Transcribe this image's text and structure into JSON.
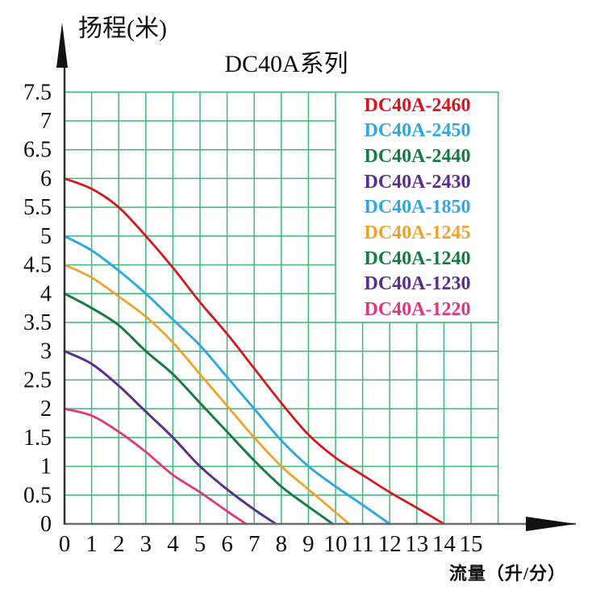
{
  "title": "DC40A系列",
  "y_axis_title": "扬程(米)",
  "x_axis_title": "流量（升/分）",
  "colors": {
    "grid": "#3CB878",
    "x_axis": "#6b6b6b",
    "y_axis": "#333333",
    "arrow": "#111111",
    "legend_background": "#ffffff",
    "text": "#111111"
  },
  "y_ticks": [
    "7.5",
    "7",
    "6.5",
    "6",
    "5.5",
    "5",
    "4.5",
    "4",
    "3.5",
    "3",
    "2.5",
    "2",
    "1.5",
    "1",
    "0.5",
    "0"
  ],
  "x_ticks": [
    "0",
    "1",
    "2",
    "3",
    "4",
    "5",
    "6",
    "7",
    "8",
    "9",
    "10",
    "11",
    "12",
    "13",
    "14",
    "15"
  ],
  "chart_data": {
    "type": "line",
    "title": "DC40A系列",
    "xlabel": "流量（升/分）",
    "ylabel": "扬程(米)",
    "xlim": [
      0,
      16
    ],
    "ylim": [
      0,
      7.5
    ],
    "x_grid_step": 1,
    "y_grid_step": 0.5,
    "grid": true,
    "legend_position": "top-right",
    "series": [
      {
        "name": "DC40A-2460",
        "color": "#D6161D",
        "points": [
          [
            0,
            6
          ],
          [
            1,
            5.82
          ],
          [
            2,
            5.5
          ],
          [
            3,
            5.0
          ],
          [
            4,
            4.45
          ],
          [
            5,
            3.85
          ],
          [
            6,
            3.3
          ],
          [
            7,
            2.7
          ],
          [
            8,
            2.1
          ],
          [
            9,
            1.55
          ],
          [
            10,
            1.15
          ],
          [
            11,
            0.85
          ],
          [
            12,
            0.55
          ],
          [
            13,
            0.28
          ],
          [
            14,
            0
          ]
        ]
      },
      {
        "name": "DC40A-2450",
        "color": "#2FA8E1",
        "points": [
          [
            0,
            5
          ],
          [
            1,
            4.75
          ],
          [
            2,
            4.4
          ],
          [
            3,
            4.0
          ],
          [
            4,
            3.55
          ],
          [
            5,
            3.1
          ],
          [
            6,
            2.55
          ],
          [
            7,
            2.0
          ],
          [
            8,
            1.45
          ],
          [
            9,
            1.0
          ],
          [
            10,
            0.65
          ],
          [
            11,
            0.33
          ],
          [
            12,
            0
          ]
        ]
      },
      {
        "name": "DC40A-2440",
        "color": "#177B44",
        "points": [
          [
            0,
            4
          ],
          [
            1,
            3.75
          ],
          [
            2,
            3.45
          ],
          [
            3,
            3.0
          ],
          [
            4,
            2.6
          ],
          [
            5,
            2.1
          ],
          [
            6,
            1.6
          ],
          [
            7,
            1.1
          ],
          [
            8,
            0.65
          ],
          [
            9,
            0.3
          ],
          [
            9.9,
            0
          ]
        ]
      },
      {
        "name": "DC40A-2430",
        "color": "#5B2D90",
        "points": [
          [
            0,
            3
          ],
          [
            1,
            2.78
          ],
          [
            2,
            2.4
          ],
          [
            3,
            1.95
          ],
          [
            4,
            1.5
          ],
          [
            5,
            1.0
          ],
          [
            6,
            0.6
          ],
          [
            7,
            0.25
          ],
          [
            7.8,
            0
          ]
        ]
      },
      {
        "name": "DC40A-1850",
        "color": "#2FA8E1",
        "points": [
          [
            0,
            5
          ],
          [
            1,
            4.75
          ],
          [
            2,
            4.4
          ],
          [
            3,
            4.0
          ],
          [
            4,
            3.55
          ],
          [
            5,
            3.1
          ],
          [
            6,
            2.55
          ],
          [
            7,
            2.0
          ],
          [
            8,
            1.45
          ],
          [
            9,
            1.0
          ],
          [
            10,
            0.65
          ],
          [
            11,
            0.33
          ],
          [
            12,
            0
          ]
        ]
      },
      {
        "name": "DC40A-1245",
        "color": "#EFA32B",
        "points": [
          [
            0,
            4.5
          ],
          [
            1,
            4.28
          ],
          [
            2,
            3.95
          ],
          [
            3,
            3.6
          ],
          [
            4,
            3.15
          ],
          [
            5,
            2.6
          ],
          [
            6,
            2.05
          ],
          [
            7,
            1.5
          ],
          [
            8,
            1.0
          ],
          [
            9,
            0.6
          ],
          [
            10,
            0.2
          ],
          [
            10.5,
            0
          ]
        ]
      },
      {
        "name": "DC40A-1240",
        "color": "#177B44",
        "points": [
          [
            0,
            4
          ],
          [
            1,
            3.75
          ],
          [
            2,
            3.45
          ],
          [
            3,
            3.0
          ],
          [
            4,
            2.6
          ],
          [
            5,
            2.1
          ],
          [
            6,
            1.6
          ],
          [
            7,
            1.1
          ],
          [
            8,
            0.65
          ],
          [
            9,
            0.3
          ],
          [
            9.9,
            0
          ]
        ]
      },
      {
        "name": "DC40A-1230",
        "color": "#5B2D90",
        "points": [
          [
            0,
            3
          ],
          [
            1,
            2.78
          ],
          [
            2,
            2.4
          ],
          [
            3,
            1.95
          ],
          [
            4,
            1.5
          ],
          [
            5,
            1.0
          ],
          [
            6,
            0.6
          ],
          [
            7,
            0.25
          ],
          [
            7.8,
            0
          ]
        ]
      },
      {
        "name": "DC40A-1220",
        "color": "#E0367C",
        "points": [
          [
            0,
            2
          ],
          [
            1,
            1.88
          ],
          [
            2,
            1.6
          ],
          [
            3,
            1.25
          ],
          [
            4,
            0.85
          ],
          [
            5,
            0.55
          ],
          [
            6,
            0.22
          ],
          [
            6.7,
            0
          ]
        ]
      }
    ]
  }
}
